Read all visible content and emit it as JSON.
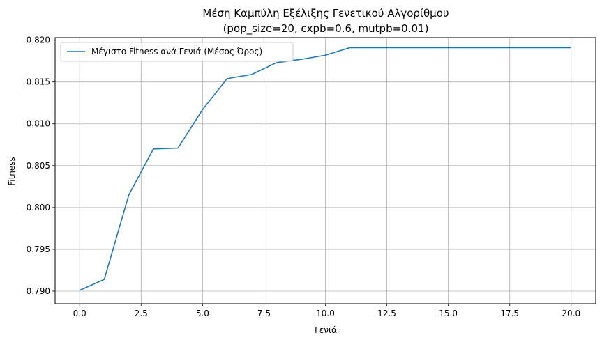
{
  "chart_data": {
    "type": "line",
    "title_line1": "Μέση Καμπύλη Εξέλιξης Γενετικού Αλγορίθμου",
    "title_line2": "(pop_size=20, cxpb=0.6, mutpb=0.01)",
    "xlabel": "Γενιά",
    "ylabel": "Fitness",
    "xlim": [
      -1.0,
      21.0
    ],
    "ylim": [
      0.7885,
      0.8203
    ],
    "xticks": [
      0.0,
      2.5,
      5.0,
      7.5,
      10.0,
      12.5,
      15.0,
      17.5,
      20.0
    ],
    "xtick_labels": [
      "0.0",
      "2.5",
      "5.0",
      "7.5",
      "10.0",
      "12.5",
      "15.0",
      "17.5",
      "20.0"
    ],
    "yticks": [
      0.79,
      0.795,
      0.8,
      0.805,
      0.81,
      0.815,
      0.82
    ],
    "ytick_labels": [
      "0.790",
      "0.795",
      "0.800",
      "0.805",
      "0.810",
      "0.815",
      "0.820"
    ],
    "grid": true,
    "legend_position": "top-left",
    "series": [
      {
        "name": "Μέγιστο Fitness ανά Γενιά (Μέσος Όρος)",
        "color": "#1f77b4",
        "x": [
          0,
          1,
          2,
          3,
          4,
          5,
          6,
          7,
          8,
          9,
          10,
          11,
          12,
          13,
          14,
          15,
          16,
          17,
          18,
          19,
          20
        ],
        "y": [
          0.7901,
          0.7914,
          0.8015,
          0.807,
          0.8071,
          0.8117,
          0.8154,
          0.8159,
          0.8173,
          0.8177,
          0.8182,
          0.8191,
          0.8191,
          0.8191,
          0.8191,
          0.8191,
          0.8191,
          0.8191,
          0.8191,
          0.8191,
          0.8191
        ]
      }
    ]
  }
}
